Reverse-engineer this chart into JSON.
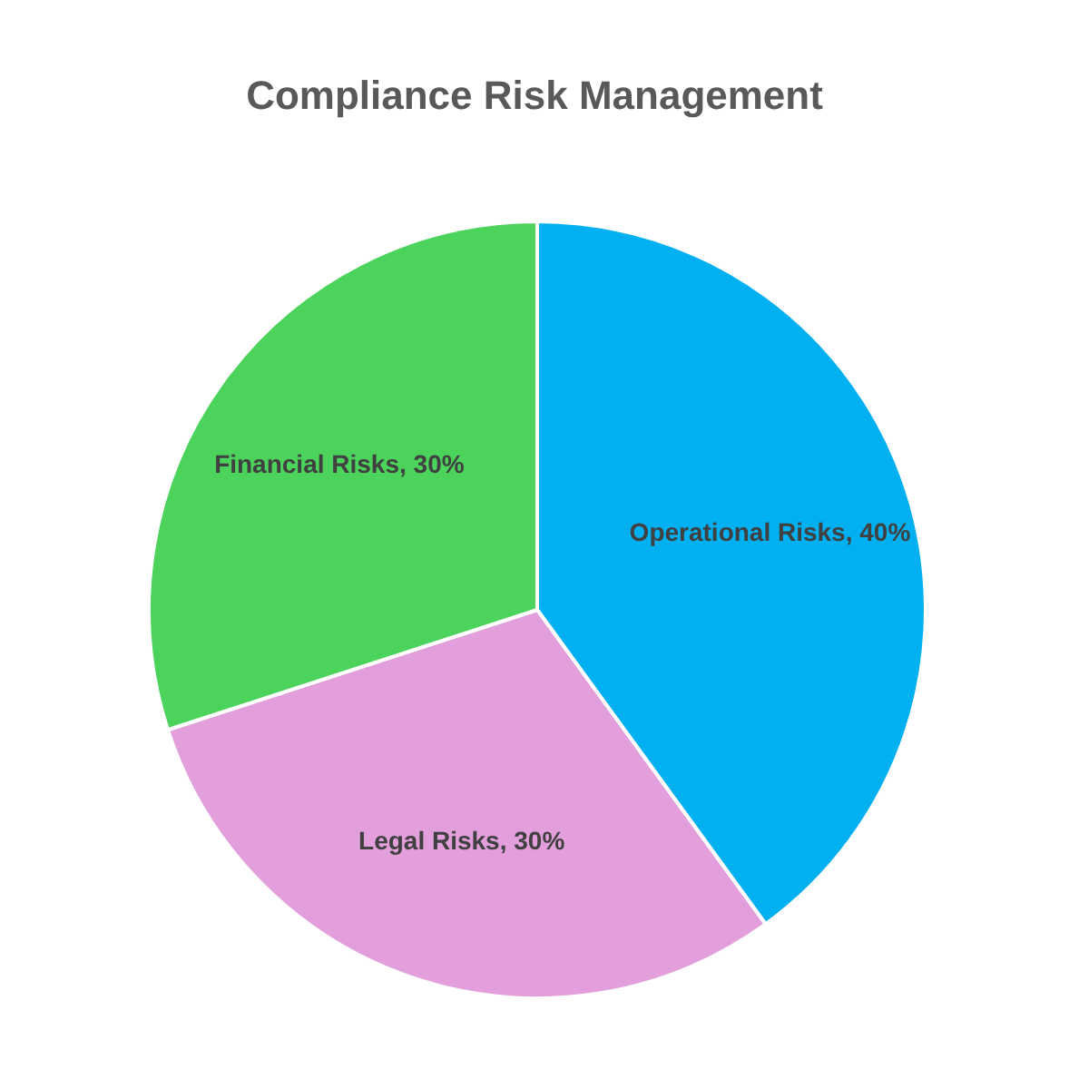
{
  "chart_data": {
    "type": "pie",
    "title": "Compliance Risk Management",
    "categories": [
      "Operational Risks",
      "Legal Risks",
      "Financial Risks"
    ],
    "values": [
      40,
      30,
      30
    ],
    "colors": [
      "#00b0f0",
      "#e29fdc",
      "#4cd35c"
    ],
    "value_labels": [
      "40%",
      "30%",
      "30%"
    ]
  }
}
